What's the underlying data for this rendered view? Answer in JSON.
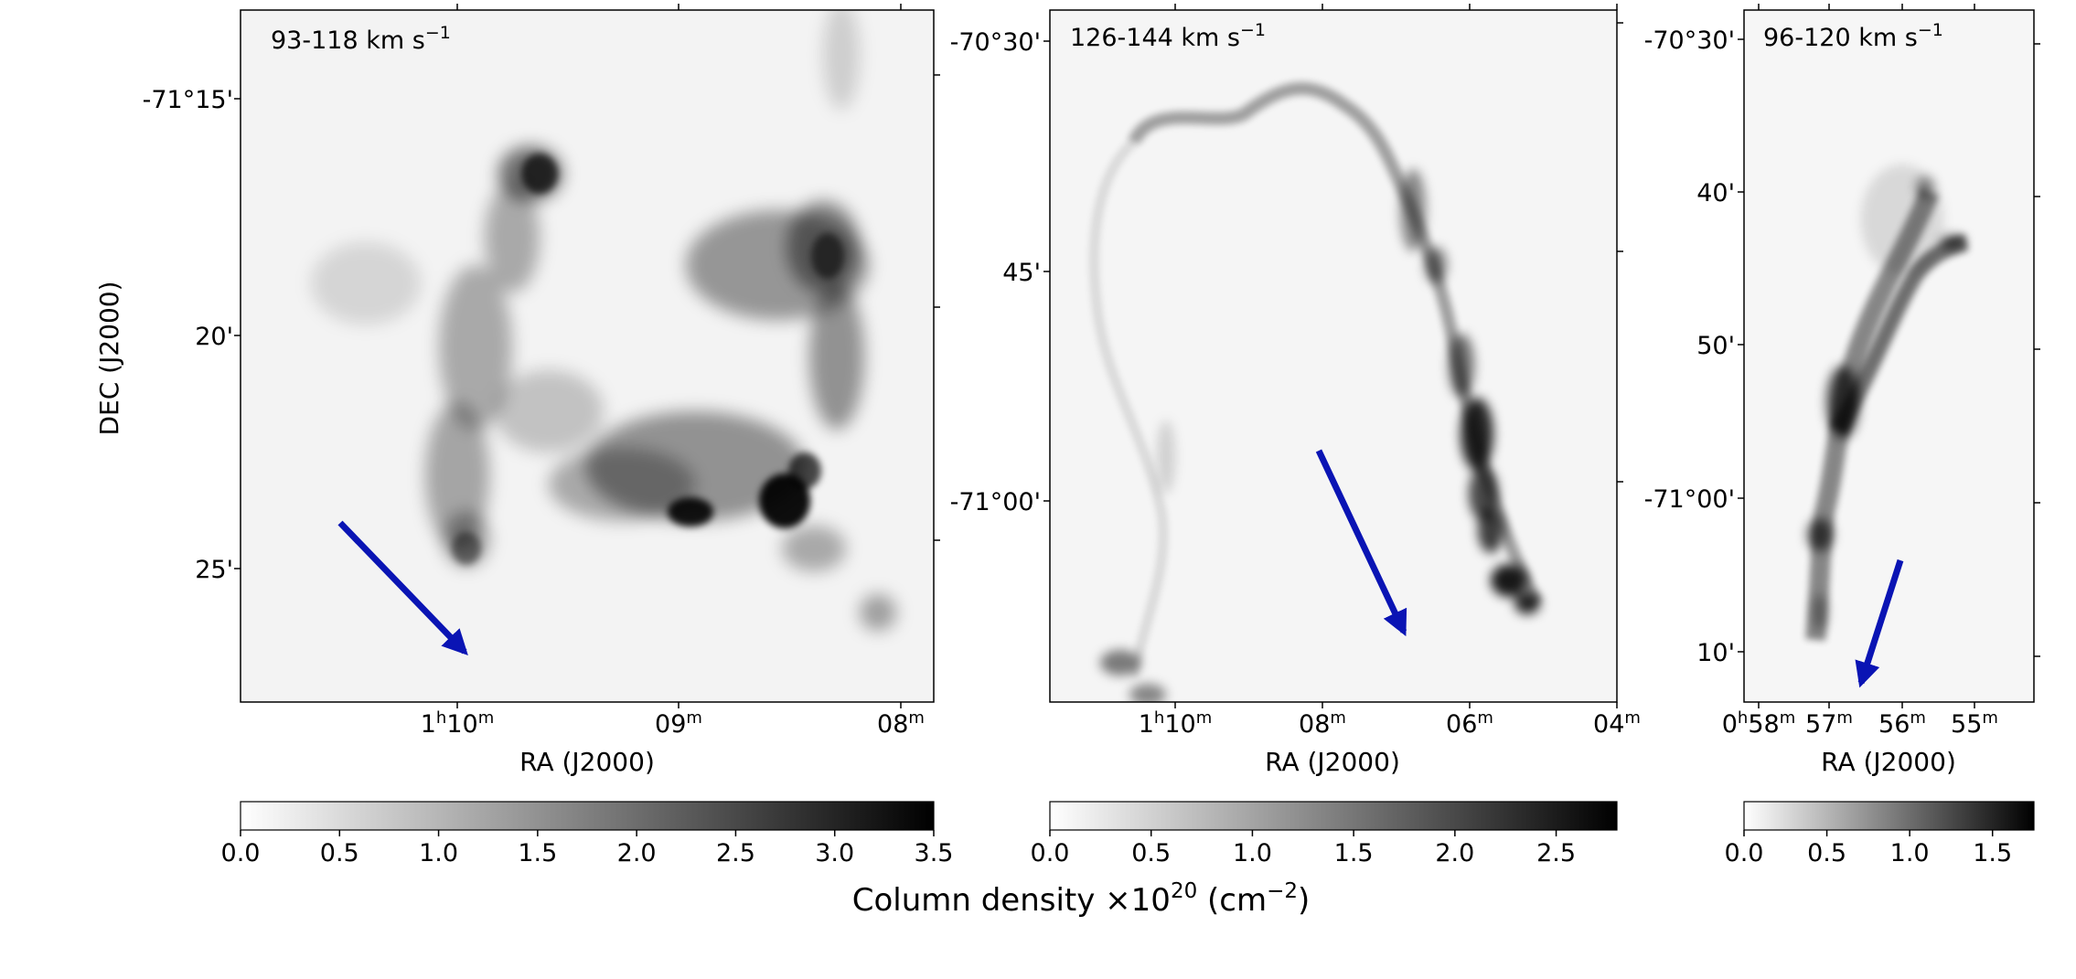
{
  "figure": {
    "shared_colorbar_label": "Column density ×10",
    "shared_colorbar_label_exp": "20",
    "shared_colorbar_label_unit": " (cm",
    "shared_colorbar_label_unit_exp": "−2",
    "shared_colorbar_label_close": ")",
    "y_axis_label": "DEC (J2000)",
    "x_axis_label": "RA (J2000)",
    "arrow_color": "#0a14b4"
  },
  "chart_data": [
    {
      "type": "heatmap",
      "panel_label": "93-118 km s",
      "panel_label_exp": "−1",
      "xlabel": "RA (J2000)",
      "ylabel": "DEC (J2000)",
      "x_ticks": [
        {
          "value": 10,
          "prefix": "1",
          "h": "h",
          "num": "10",
          "m": "m"
        },
        {
          "value": 9,
          "prefix": "",
          "h": "",
          "num": "09",
          "m": "m"
        },
        {
          "value": 8,
          "prefix": "",
          "h": "",
          "num": "08",
          "m": "m"
        }
      ],
      "y_ticks": [
        "-71°15'",
        "20'",
        "25'"
      ],
      "colorbar": {
        "min": 0.0,
        "max": 3.5,
        "ticks": [
          "0.0",
          "0.5",
          "1.0",
          "1.5",
          "2.0",
          "2.5",
          "3.0",
          "3.5"
        ]
      },
      "colormap": "grayscale (white=0, black=max)"
    },
    {
      "type": "heatmap",
      "panel_label": "126-144 km s",
      "panel_label_exp": "−1",
      "xlabel": "RA (J2000)",
      "x_ticks": [
        {
          "value": 10,
          "prefix": "1",
          "h": "h",
          "num": "10",
          "m": "m"
        },
        {
          "value": 8,
          "prefix": "",
          "h": "",
          "num": "08",
          "m": "m"
        },
        {
          "value": 6,
          "prefix": "",
          "h": "",
          "num": "06",
          "m": "m"
        },
        {
          "value": 4,
          "prefix": "",
          "h": "",
          "num": "04",
          "m": "m"
        }
      ],
      "y_ticks": [
        "-70°30'",
        "45'",
        "-71°00'"
      ],
      "colorbar": {
        "min": 0.0,
        "max": 2.8,
        "ticks": [
          "0.0",
          "0.5",
          "1.0",
          "1.5",
          "2.0",
          "2.5"
        ]
      },
      "colormap": "grayscale (white=0, black=max)"
    },
    {
      "type": "heatmap",
      "panel_label": "96-120 km s",
      "panel_label_exp": "−1",
      "xlabel": "RA (J2000)",
      "x_ticks": [
        {
          "value": 58,
          "prefix": "0",
          "h": "h",
          "num": "58",
          "m": "m"
        },
        {
          "value": 57,
          "prefix": "",
          "h": "",
          "num": "57",
          "m": "m"
        },
        {
          "value": 56,
          "prefix": "",
          "h": "",
          "num": "56",
          "m": "m"
        },
        {
          "value": 55,
          "prefix": "",
          "h": "",
          "num": "55",
          "m": "m"
        }
      ],
      "y_ticks": [
        "-70°30'",
        "40'",
        "50'",
        "-71°00'",
        "10'"
      ],
      "colorbar": {
        "min": 0.0,
        "max": 1.75,
        "ticks": [
          "0.0",
          "0.5",
          "1.0",
          "1.5"
        ]
      },
      "colormap": "grayscale (white=0, black=max)"
    }
  ]
}
